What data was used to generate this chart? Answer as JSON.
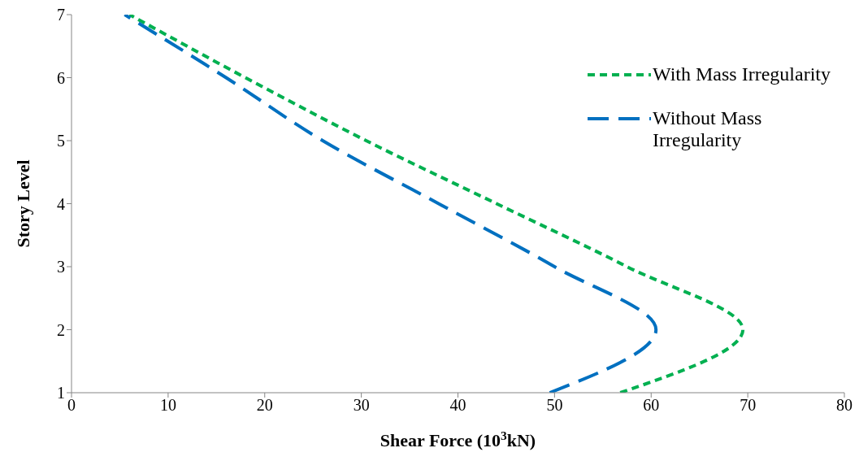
{
  "chart_data": {
    "type": "line",
    "xlabel": "Shear Force (10$^{3}$kN)",
    "ylabel": "Story Level",
    "xlim": [
      0,
      80
    ],
    "xticks": [
      0,
      10,
      20,
      30,
      40,
      50,
      60,
      70,
      80
    ],
    "ylim": [
      1,
      7
    ],
    "yticks": [
      1,
      2,
      3,
      4,
      5,
      6,
      7
    ],
    "grid": false,
    "legend": "top right",
    "marker": "none",
    "series": [
      {
        "name": "With Mass Irregularity",
        "color": "#00b050",
        "line_style": "dotted",
        "x": [
          56.8,
          69.5,
          57.5,
          44,
          30.5,
          18,
          6
        ],
        "values": [
          1,
          2,
          3,
          4,
          5,
          6,
          7
        ]
      },
      {
        "name": "Without Mass Irregularity",
        "color": "#0070c0",
        "line_style": "dashed",
        "x": [
          49.5,
          60.5,
          50,
          38,
          26,
          16,
          5.5
        ],
        "values": [
          1,
          2,
          3,
          4,
          5,
          6,
          7
        ]
      }
    ]
  }
}
